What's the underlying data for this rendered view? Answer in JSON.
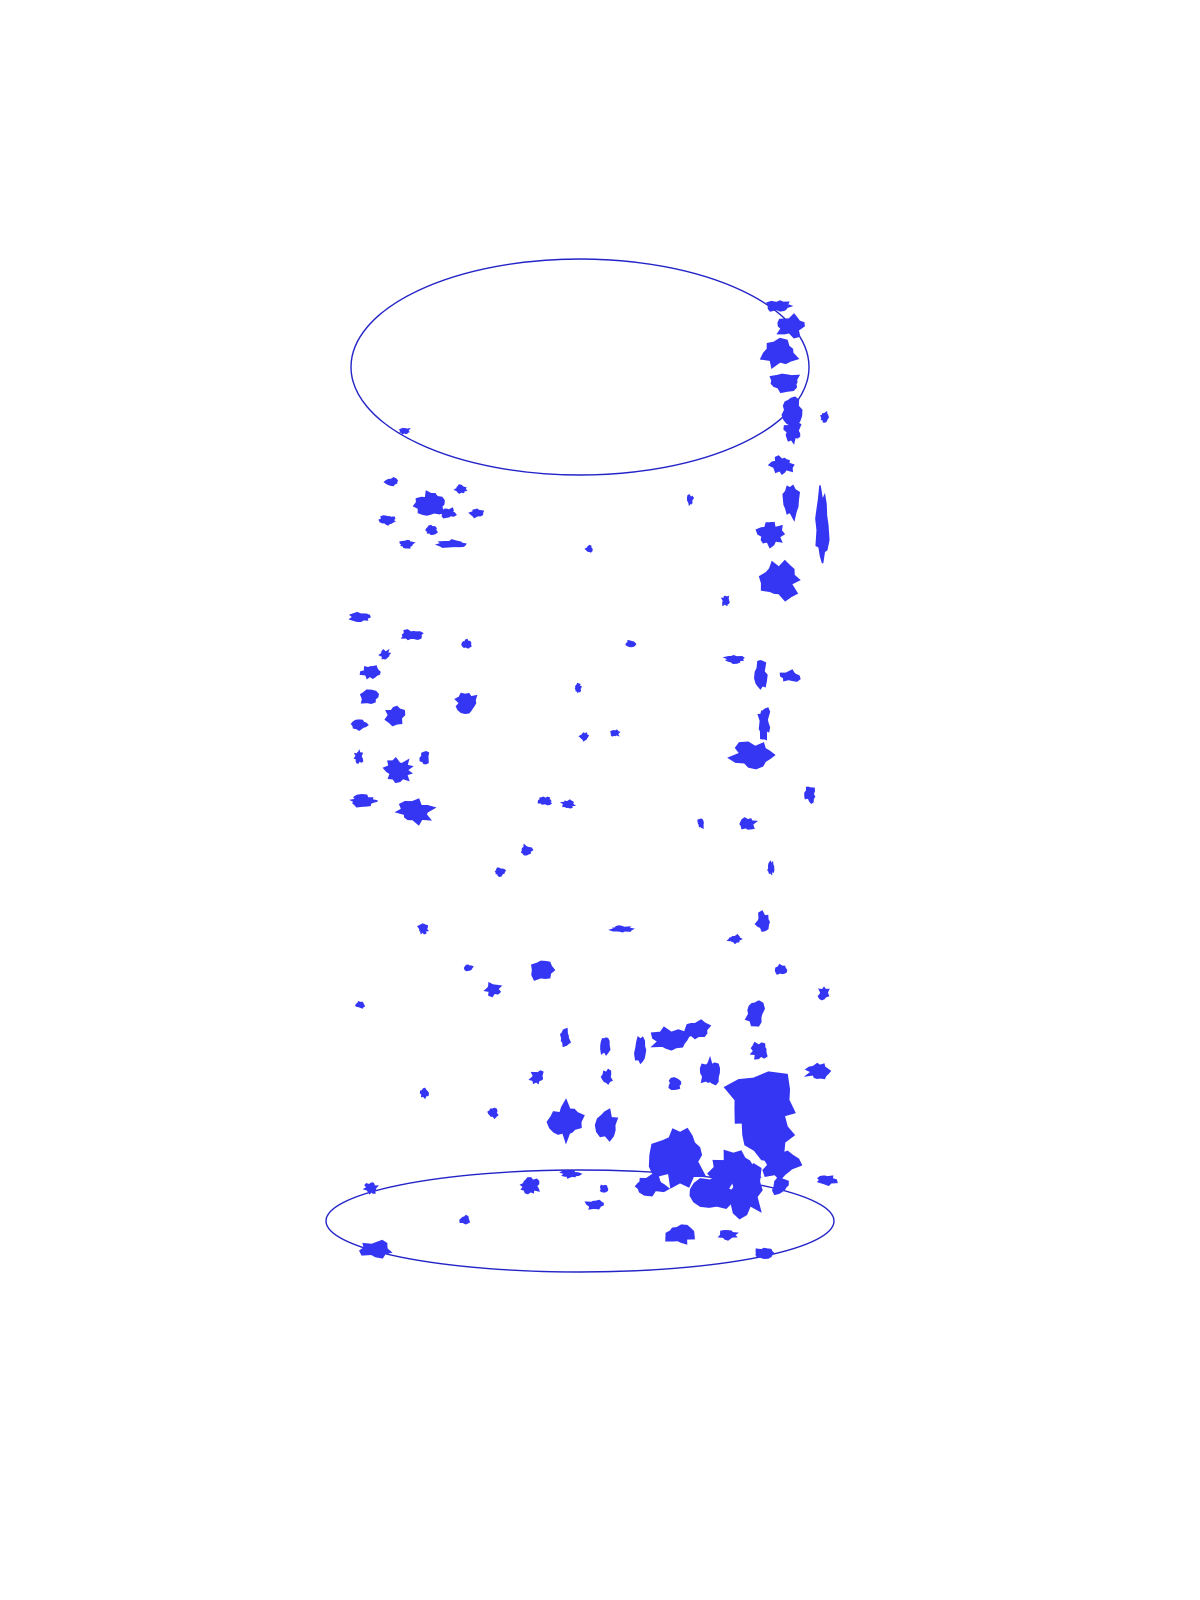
{
  "colors": {
    "outline": "#2323c8",
    "fragment": "#3535f4",
    "background": "#ffffff"
  },
  "diagram": {
    "shape": "vertical cylinder",
    "labels": [],
    "ellipses": [
      {
        "name": "top-ellipse"
      },
      {
        "name": "bottom-ellipse"
      }
    ]
  }
}
